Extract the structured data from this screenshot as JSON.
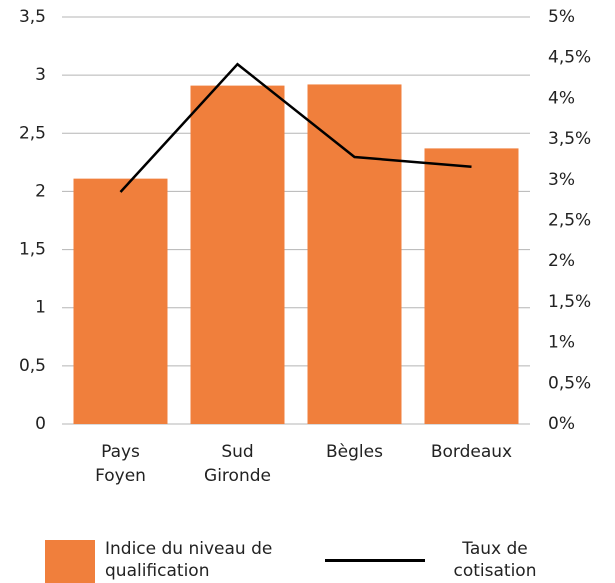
{
  "chart_data": {
    "type": "bar_line",
    "categories": [
      "Pays Foyen",
      "Sud Gironde",
      "Bègles",
      "Bordeaux"
    ],
    "series": [
      {
        "name": "Indice du niveau de qualification",
        "type": "bar",
        "color": "#f07f3c",
        "values": [
          2.11,
          2.91,
          2.92,
          2.37
        ]
      },
      {
        "name": "Taux de cotisation",
        "type": "line",
        "color": "#000000",
        "axis": "y2",
        "values": [
          2.85,
          4.42,
          3.28,
          3.16
        ]
      }
    ],
    "ylim": [
      0,
      3.5
    ],
    "yticks": [
      0,
      {
        "value": 0.5,
        "label": "0,5"
      },
      1,
      {
        "value": 1.5,
        "label": "1,5"
      },
      2,
      {
        "value": 2.5,
        "label": "2,5"
      },
      3,
      {
        "value": 3.5,
        "label": "3,5"
      }
    ],
    "y2lim": [
      0,
      5
    ],
    "y2ticks": [
      {
        "value": 0,
        "label": "0%"
      },
      {
        "value": 0.5,
        "label": "0,5%"
      },
      {
        "value": 1,
        "label": "1%"
      },
      {
        "value": 1.5,
        "label": "1,5%"
      },
      {
        "value": 2,
        "label": "2%"
      },
      {
        "value": 2.5,
        "label": "2,5%"
      },
      {
        "value": 3,
        "label": "3%"
      },
      {
        "value": 3.5,
        "label": "3,5%"
      },
      {
        "value": 4,
        "label": "4%"
      },
      {
        "value": 4.5,
        "label": "4,5%"
      },
      {
        "value": 5,
        "label": "5%"
      }
    ],
    "grid": true
  }
}
